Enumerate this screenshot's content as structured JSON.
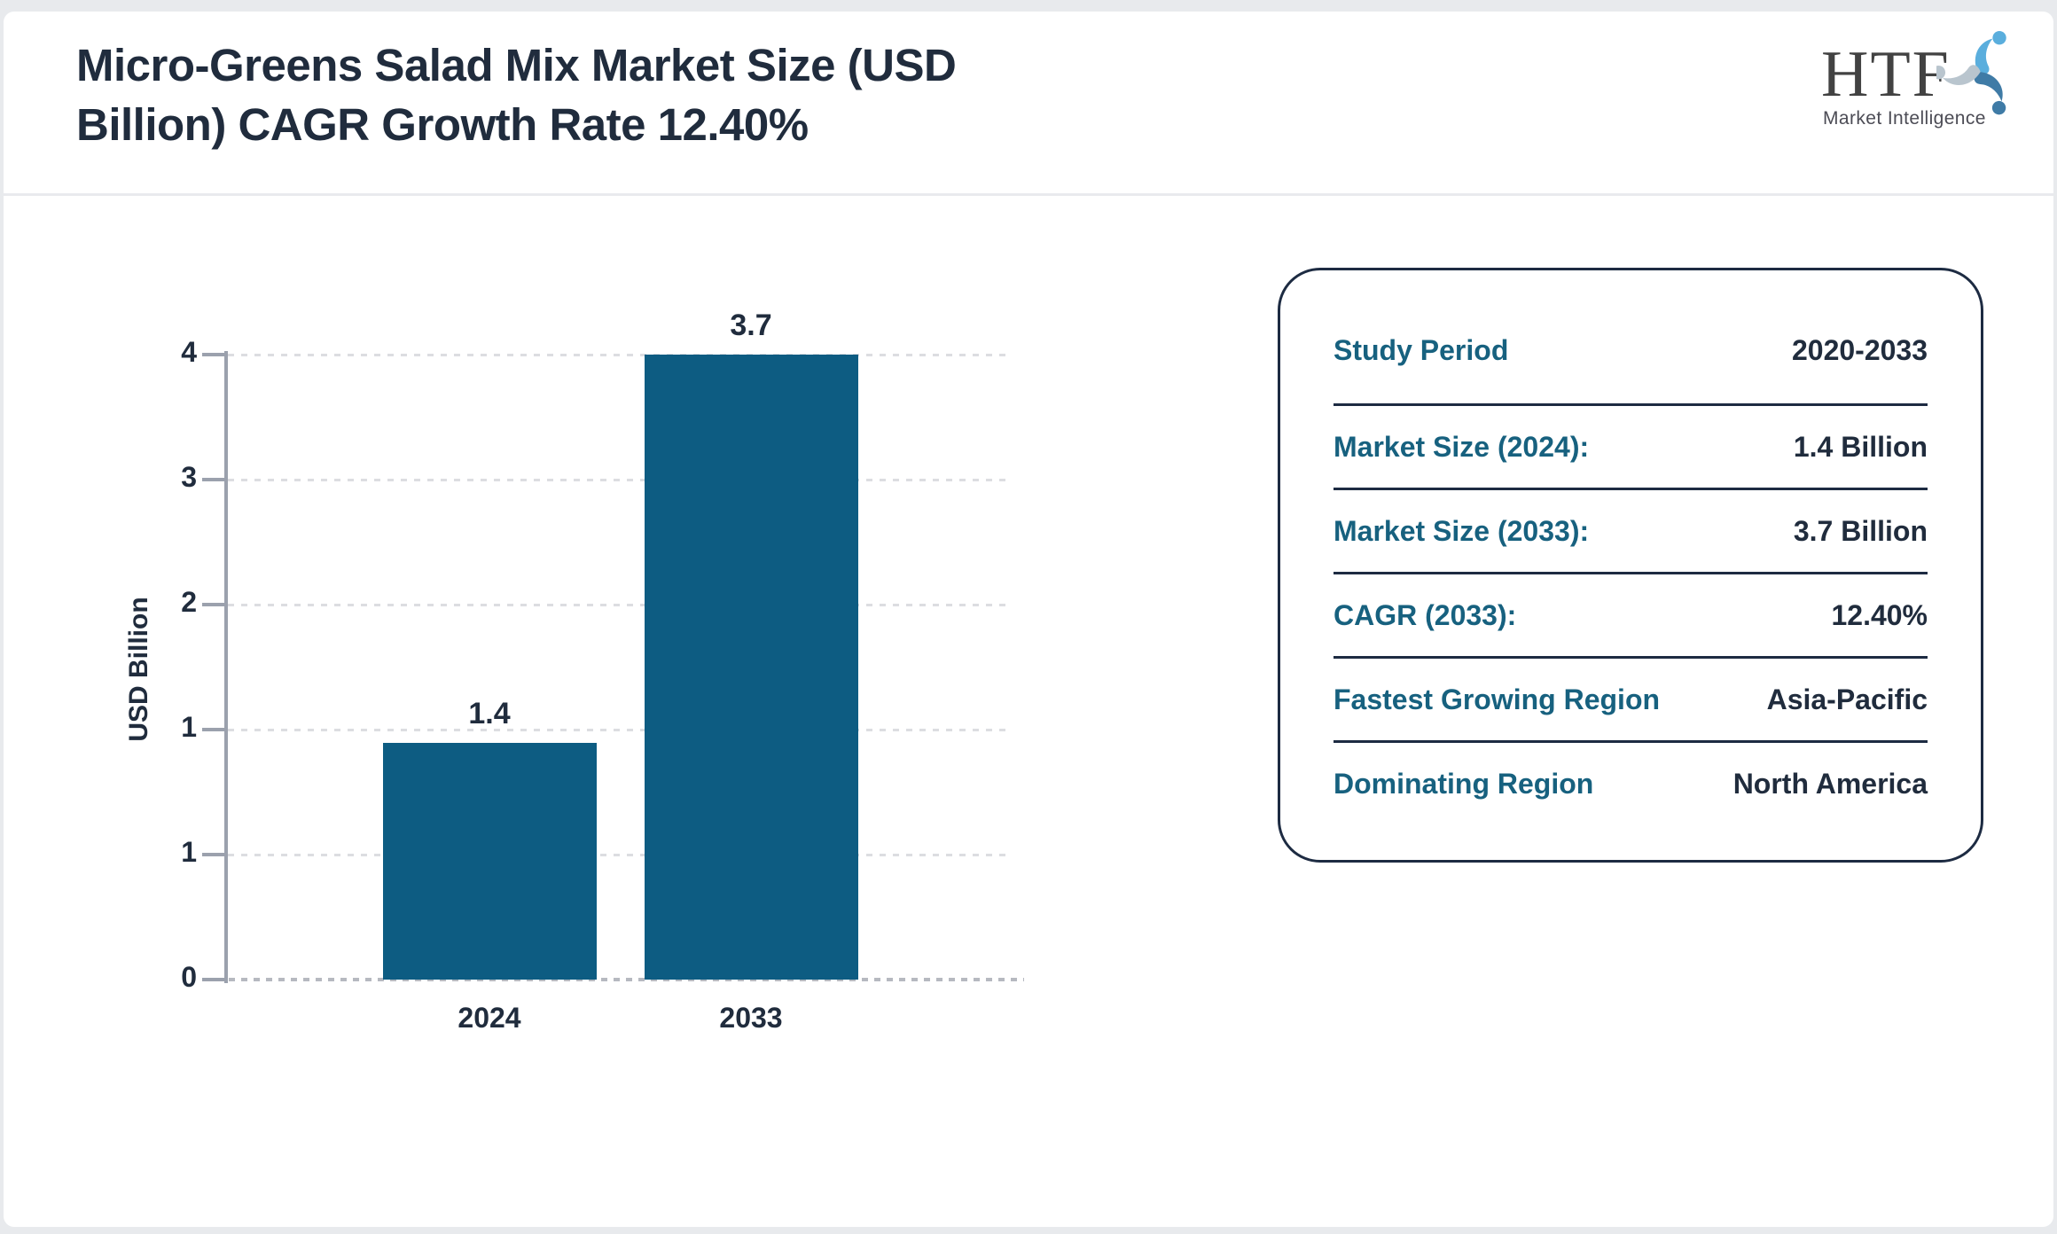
{
  "header": {
    "title": "Micro-Greens Salad Mix Market Size (USD Billion) CAGR Growth Rate 12.40%",
    "logo_text": "HTF",
    "logo_subtext": "Market Intelligence"
  },
  "chart_data": {
    "type": "bar",
    "title": "Micro-Greens Salad Mix Market Size (USD Billion)",
    "categories": [
      "2024",
      "2033"
    ],
    "values": [
      1.4,
      3.7
    ],
    "bar_labels": [
      "1.4",
      "3.7"
    ],
    "xlabel": "",
    "ylabel": "USD Billion",
    "ylim": [
      0,
      3.7
    ],
    "ytick_labels_top_to_bottom": [
      "4",
      "3",
      "2",
      "1",
      "1",
      "0"
    ],
    "grid": "horizontal-dashed",
    "legend": "none",
    "bar_color": "#0d5c82"
  },
  "info_panel": {
    "rows": [
      {
        "label": "Study Period",
        "value": "2020-2033"
      },
      {
        "label": "Market Size (2024):",
        "value": "1.4 Billion"
      },
      {
        "label": "Market Size (2033):",
        "value": "3.7 Billion"
      },
      {
        "label": "CAGR (2033):",
        "value": "12.40%"
      },
      {
        "label": "Fastest Growing Region",
        "value": "Asia-Pacific"
      },
      {
        "label": "Dominating Region",
        "value": "North America"
      }
    ]
  },
  "colors": {
    "bar": "#0d5c82",
    "label_teal": "#17617f",
    "text_navy": "#202c3d",
    "axis_gray": "#9ba1ad",
    "page_background": "#e8eaed",
    "logo_swirl_light_blue": "#5aaedd",
    "logo_swirl_steel_blue": "#3f7ba6",
    "logo_swirl_gray": "#b9c5ce"
  }
}
